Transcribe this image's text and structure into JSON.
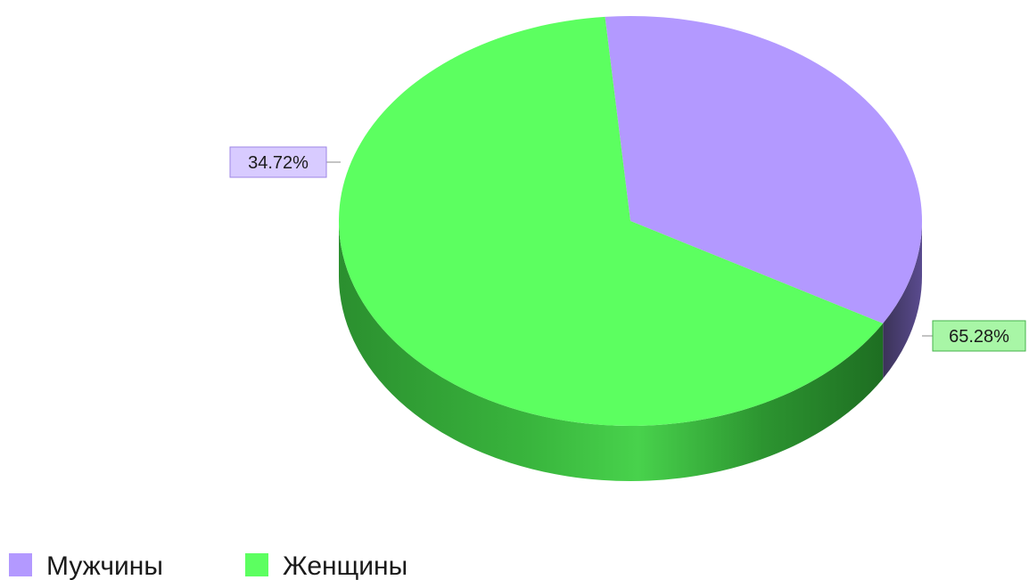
{
  "chart_data": {
    "type": "pie",
    "slices": [
      {
        "name": "Мужчины",
        "value": 34.72,
        "label": "34.72%",
        "color": "#b399ff",
        "side_color": "#4a3f75",
        "label_bg": "#d8cbff",
        "label_border": "#9d86e6"
      },
      {
        "name": "Женщины",
        "value": 65.28,
        "label": "65.28%",
        "color": "#5cff60",
        "side_color": "#2f9a2f",
        "label_bg": "#a8f6a6",
        "label_border": "#45b34b"
      }
    ],
    "legend": {
      "placement": "bottom-left",
      "items": [
        "Мужчины",
        "Женщины"
      ]
    }
  }
}
